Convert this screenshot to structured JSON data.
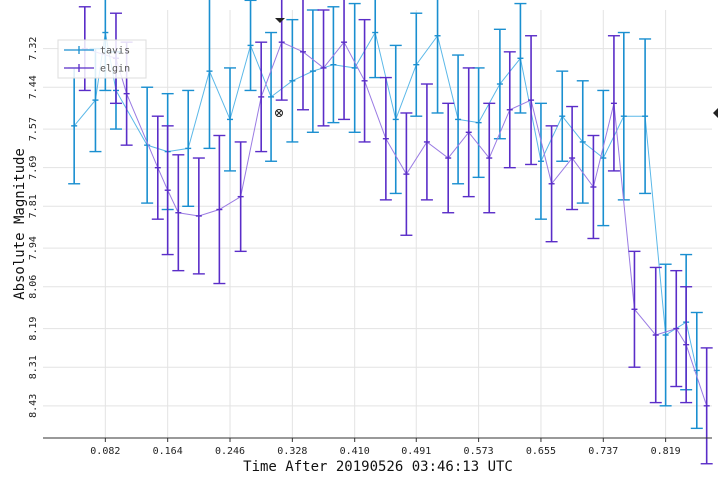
{
  "chart_data": {
    "type": "scatter",
    "xlabel": "Time After 20190526 03:46:13 UTC",
    "ylabel": "Absolute Magnitude",
    "xlim": [
      0.0,
      0.88
    ],
    "ylim": [
      8.53,
      7.2
    ],
    "y_inverted": true,
    "x_ticks": [
      "0.082",
      "0.164",
      "0.246",
      "0.328",
      "0.410",
      "0.491",
      "0.573",
      "0.655",
      "0.737",
      "0.819"
    ],
    "y_ticks": [
      "7.32",
      "7.44",
      "7.57",
      "7.69",
      "7.81",
      "7.94",
      "8.06",
      "8.19",
      "8.31",
      "8.43"
    ],
    "grid": true,
    "legend_position": "top-left",
    "series": [
      {
        "name": "tavis",
        "color": "#1a8fd0",
        "line_color": "#5bb8e8",
        "x": [
          0.041,
          0.069,
          0.082,
          0.096,
          0.137,
          0.164,
          0.191,
          0.219,
          0.246,
          0.273,
          0.3,
          0.328,
          0.355,
          0.382,
          0.41,
          0.437,
          0.464,
          0.491,
          0.519,
          0.546,
          0.573,
          0.601,
          0.628,
          0.655,
          0.683,
          0.71,
          0.737,
          0.764,
          0.792,
          0.819,
          0.846,
          0.86
        ],
        "y": [
          7.56,
          7.48,
          7.27,
          7.45,
          7.62,
          7.64,
          7.63,
          7.39,
          7.54,
          7.31,
          7.47,
          7.42,
          7.39,
          7.37,
          7.38,
          7.27,
          7.54,
          7.37,
          7.28,
          7.54,
          7.55,
          7.43,
          7.35,
          7.67,
          7.53,
          7.61,
          7.66,
          7.53,
          7.53,
          8.21,
          8.17,
          8.32
        ],
        "err": [
          0.18,
          0.16,
          0.18,
          0.12,
          0.18,
          0.18,
          0.18,
          0.24,
          0.16,
          0.14,
          0.2,
          0.19,
          0.19,
          0.18,
          0.2,
          0.14,
          0.23,
          0.16,
          0.24,
          0.2,
          0.17,
          0.17,
          0.17,
          0.18,
          0.14,
          0.19,
          0.21,
          0.26,
          0.24,
          0.22,
          0.21,
          0.18
        ]
      },
      {
        "name": "elgin",
        "color": "#5a2dc8",
        "line_color": "#9a7be3",
        "x": [
          0.055,
          0.096,
          0.11,
          0.151,
          0.164,
          0.178,
          0.205,
          0.232,
          0.26,
          0.287,
          0.314,
          0.342,
          0.369,
          0.396,
          0.423,
          0.451,
          0.478,
          0.505,
          0.533,
          0.56,
          0.587,
          0.614,
          0.642,
          0.669,
          0.696,
          0.724,
          0.751,
          0.778,
          0.806,
          0.833,
          0.846,
          0.873
        ],
        "y": [
          7.32,
          7.35,
          7.46,
          7.69,
          7.76,
          7.83,
          7.84,
          7.82,
          7.78,
          7.47,
          7.3,
          7.33,
          7.38,
          7.3,
          7.42,
          7.6,
          7.71,
          7.61,
          7.66,
          7.58,
          7.66,
          7.51,
          7.48,
          7.74,
          7.66,
          7.75,
          7.49,
          8.13,
          8.21,
          8.19,
          8.24,
          8.43
        ],
        "err": [
          0.13,
          0.14,
          0.16,
          0.16,
          0.2,
          0.18,
          0.18,
          0.23,
          0.17,
          0.17,
          0.18,
          0.18,
          0.18,
          0.24,
          0.19,
          0.19,
          0.19,
          0.18,
          0.17,
          0.2,
          0.17,
          0.18,
          0.2,
          0.18,
          0.16,
          0.16,
          0.21,
          0.18,
          0.21,
          0.18,
          0.18,
          0.18
        ]
      }
    ]
  }
}
